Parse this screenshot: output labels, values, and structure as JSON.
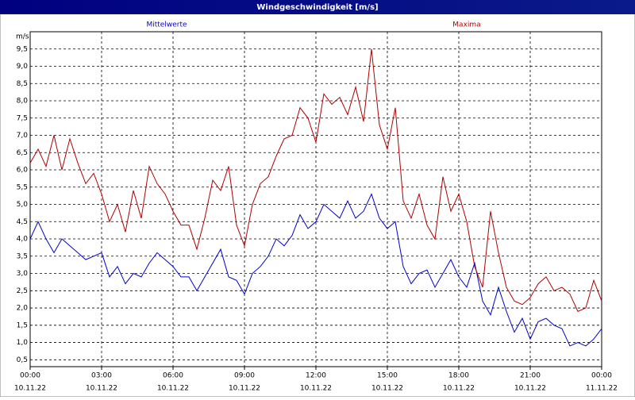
{
  "chart_data": {
    "type": "line",
    "title": "Windgeschwindigkeit [m/s]",
    "y_label": "m/s",
    "x": [
      0,
      20,
      40,
      60,
      80,
      100,
      120,
      140,
      160,
      180,
      200,
      220,
      240,
      260,
      280,
      300,
      320,
      340,
      360,
      380,
      400,
      420,
      440,
      460,
      480,
      500,
      520,
      540,
      560,
      580,
      600,
      620,
      640,
      660,
      680,
      700,
      720,
      740,
      760,
      780,
      800,
      820,
      840,
      860,
      880,
      900,
      920,
      940,
      960,
      980,
      1000,
      1020,
      1040,
      1060,
      1080,
      1100,
      1120,
      1140,
      1160,
      1180,
      1200,
      1220,
      1240,
      1260,
      1280,
      1300,
      1320,
      1340,
      1360,
      1380,
      1400,
      1420,
      1440
    ],
    "series": [
      {
        "name": "Mittelwerte",
        "color": "#0000cc",
        "values": [
          4.0,
          4.5,
          4.0,
          3.6,
          4.0,
          3.8,
          3.6,
          3.4,
          3.5,
          3.6,
          2.9,
          3.2,
          2.7,
          3.0,
          2.9,
          3.3,
          3.6,
          3.4,
          3.2,
          2.9,
          2.9,
          2.5,
          2.9,
          3.3,
          3.7,
          2.9,
          2.8,
          2.4,
          3.0,
          3.2,
          3.5,
          4.0,
          3.8,
          4.1,
          4.7,
          4.3,
          4.5,
          5.0,
          4.8,
          4.6,
          5.1,
          4.6,
          4.8,
          5.3,
          4.6,
          4.3,
          4.5,
          3.2,
          2.7,
          3.0,
          3.1,
          2.6,
          3.0,
          3.4,
          2.9,
          2.6,
          3.3,
          2.2,
          1.8,
          2.6,
          1.9,
          1.3,
          1.7,
          1.1,
          1.6,
          1.7,
          1.5,
          1.4,
          0.9,
          1.0,
          0.9,
          1.1,
          1.4
        ]
      },
      {
        "name": "Maxima",
        "color": "#b00000",
        "values": [
          6.2,
          6.6,
          6.1,
          7.0,
          6.0,
          6.9,
          6.2,
          5.6,
          5.9,
          5.3,
          4.5,
          5.0,
          4.2,
          5.4,
          4.6,
          6.1,
          5.6,
          5.3,
          4.8,
          4.4,
          4.4,
          3.7,
          4.6,
          5.7,
          5.4,
          6.1,
          4.4,
          3.8,
          5.0,
          5.6,
          5.8,
          6.4,
          6.9,
          7.0,
          7.8,
          7.5,
          6.8,
          8.2,
          7.9,
          8.1,
          7.6,
          8.4,
          7.4,
          9.5,
          7.3,
          6.6,
          7.8,
          5.1,
          4.6,
          5.3,
          4.4,
          4.0,
          5.8,
          4.8,
          5.3,
          4.5,
          3.2,
          2.6,
          4.8,
          3.6,
          2.6,
          2.2,
          2.1,
          2.3,
          2.7,
          2.9,
          2.5,
          2.6,
          2.4,
          1.9,
          2.0,
          2.8,
          2.2
        ]
      }
    ],
    "xlim": [
      0,
      1440
    ],
    "xticks": [
      {
        "value": 0,
        "label": "00:00"
      },
      {
        "value": 180,
        "label": "03:00"
      },
      {
        "value": 360,
        "label": "06:00"
      },
      {
        "value": 540,
        "label": "09:00"
      },
      {
        "value": 720,
        "label": "12:00"
      },
      {
        "value": 900,
        "label": "15:00"
      },
      {
        "value": 1080,
        "label": "18:00"
      },
      {
        "value": 1260,
        "label": "21:00"
      },
      {
        "value": 1440,
        "label": "00:00"
      }
    ],
    "xtick_dates": [
      "10.11.22",
      "10.11.22",
      "10.11.22",
      "10.11.22",
      "10.11.22",
      "10.11.22",
      "10.11.22",
      "10.11.22",
      "11.11.22"
    ],
    "ylim": [
      0.3,
      10
    ],
    "yticks": [
      {
        "value": 0.5,
        "label": "0,5"
      },
      {
        "value": 1,
        "label": "1,0"
      },
      {
        "value": 1.5,
        "label": "1,5"
      },
      {
        "value": 2,
        "label": "2,0"
      },
      {
        "value": 2.5,
        "label": "2,5"
      },
      {
        "value": 3,
        "label": "3,0"
      },
      {
        "value": 3.5,
        "label": "3,5"
      },
      {
        "value": 4,
        "label": "4,0"
      },
      {
        "value": 4.5,
        "label": "4,5"
      },
      {
        "value": 5,
        "label": "5,0"
      },
      {
        "value": 5.5,
        "label": "5,5"
      },
      {
        "value": 6,
        "label": "6,0"
      },
      {
        "value": 6.5,
        "label": "6,5"
      },
      {
        "value": 7,
        "label": "7,0"
      },
      {
        "value": 7.5,
        "label": "7,5"
      },
      {
        "value": 8,
        "label": "8,0"
      },
      {
        "value": 8.5,
        "label": "8,5"
      },
      {
        "value": 9,
        "label": "9,0"
      },
      {
        "value": 9.5,
        "label": "9,5"
      }
    ],
    "grid": true
  }
}
